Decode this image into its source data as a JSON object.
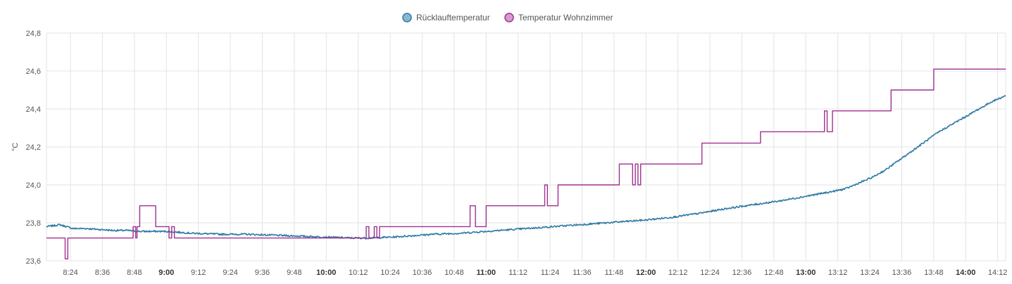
{
  "chart_data": {
    "type": "line",
    "ylabel": "°C",
    "ylim": [
      23.6,
      24.8
    ],
    "y_ticks": [
      "23,6",
      "23,8",
      "24,0",
      "24,2",
      "24,4",
      "24,6",
      "24,8"
    ],
    "y_tick_values": [
      23.6,
      23.8,
      24.0,
      24.2,
      24.4,
      24.6,
      24.8
    ],
    "xlim_minutes": [
      495,
      855
    ],
    "x_ticks": [
      {
        "label": "8:24",
        "m": 504,
        "bold": false
      },
      {
        "label": "8:36",
        "m": 516,
        "bold": false
      },
      {
        "label": "8:48",
        "m": 528,
        "bold": false
      },
      {
        "label": "9:00",
        "m": 540,
        "bold": true
      },
      {
        "label": "9:12",
        "m": 552,
        "bold": false
      },
      {
        "label": "9:24",
        "m": 564,
        "bold": false
      },
      {
        "label": "9:36",
        "m": 576,
        "bold": false
      },
      {
        "label": "9:48",
        "m": 588,
        "bold": false
      },
      {
        "label": "10:00",
        "m": 600,
        "bold": true
      },
      {
        "label": "10:12",
        "m": 612,
        "bold": false
      },
      {
        "label": "10:24",
        "m": 624,
        "bold": false
      },
      {
        "label": "10:36",
        "m": 636,
        "bold": false
      },
      {
        "label": "10:48",
        "m": 648,
        "bold": false
      },
      {
        "label": "11:00",
        "m": 660,
        "bold": true
      },
      {
        "label": "11:12",
        "m": 672,
        "bold": false
      },
      {
        "label": "11:24",
        "m": 684,
        "bold": false
      },
      {
        "label": "11:36",
        "m": 696,
        "bold": false
      },
      {
        "label": "11:48",
        "m": 708,
        "bold": false
      },
      {
        "label": "12:00",
        "m": 720,
        "bold": true
      },
      {
        "label": "12:12",
        "m": 732,
        "bold": false
      },
      {
        "label": "12:24",
        "m": 744,
        "bold": false
      },
      {
        "label": "12:36",
        "m": 756,
        "bold": false
      },
      {
        "label": "12:48",
        "m": 768,
        "bold": false
      },
      {
        "label": "13:00",
        "m": 780,
        "bold": true
      },
      {
        "label": "13:12",
        "m": 792,
        "bold": false
      },
      {
        "label": "13:24",
        "m": 804,
        "bold": false
      },
      {
        "label": "13:36",
        "m": 816,
        "bold": false
      },
      {
        "label": "13:48",
        "m": 828,
        "bold": false
      },
      {
        "label": "14:00",
        "m": 840,
        "bold": true
      },
      {
        "label": "14:12",
        "m": 852,
        "bold": false
      }
    ],
    "grid": true,
    "legend_position": "top-center",
    "series": [
      {
        "name": "Rücklauftemperatur",
        "color": "#2f7aa3",
        "fill": "#8fb6cf",
        "step": false,
        "points": [
          [
            495,
            23.78
          ],
          [
            500,
            23.79
          ],
          [
            505,
            23.77
          ],
          [
            510,
            23.77
          ],
          [
            515,
            23.765
          ],
          [
            520,
            23.76
          ],
          [
            525,
            23.76
          ],
          [
            530,
            23.755
          ],
          [
            535,
            23.755
          ],
          [
            540,
            23.755
          ],
          [
            545,
            23.75
          ],
          [
            550,
            23.745
          ],
          [
            560,
            23.74
          ],
          [
            570,
            23.74
          ],
          [
            580,
            23.735
          ],
          [
            590,
            23.73
          ],
          [
            600,
            23.725
          ],
          [
            610,
            23.72
          ],
          [
            615,
            23.72
          ],
          [
            625,
            23.725
          ],
          [
            630,
            23.73
          ],
          [
            640,
            23.74
          ],
          [
            650,
            23.745
          ],
          [
            660,
            23.755
          ],
          [
            670,
            23.765
          ],
          [
            680,
            23.775
          ],
          [
            690,
            23.785
          ],
          [
            700,
            23.795
          ],
          [
            710,
            23.805
          ],
          [
            720,
            23.815
          ],
          [
            730,
            23.83
          ],
          [
            740,
            23.85
          ],
          [
            750,
            23.875
          ],
          [
            760,
            23.895
          ],
          [
            770,
            23.915
          ],
          [
            780,
            23.94
          ],
          [
            790,
            23.965
          ],
          [
            795,
            23.98
          ],
          [
            800,
            24.01
          ],
          [
            805,
            24.04
          ],
          [
            810,
            24.08
          ],
          [
            815,
            24.13
          ],
          [
            820,
            24.18
          ],
          [
            825,
            24.23
          ],
          [
            830,
            24.28
          ],
          [
            835,
            24.32
          ],
          [
            840,
            24.36
          ],
          [
            845,
            24.4
          ],
          [
            850,
            24.44
          ],
          [
            855,
            24.47
          ]
        ]
      },
      {
        "name": "Temperatur Wohnzimmer",
        "color": "#a0308f",
        "fill": "#d79ad0",
        "step": true,
        "points": [
          [
            495,
            23.72
          ],
          [
            502,
            23.61
          ],
          [
            503,
            23.72
          ],
          [
            527.5,
            23.78
          ],
          [
            528.5,
            23.72
          ],
          [
            529,
            23.78
          ],
          [
            530,
            23.89
          ],
          [
            536,
            23.78
          ],
          [
            541,
            23.72
          ],
          [
            542,
            23.78
          ],
          [
            543,
            23.72
          ],
          [
            615,
            23.78
          ],
          [
            616,
            23.72
          ],
          [
            618,
            23.78
          ],
          [
            619,
            23.72
          ],
          [
            620,
            23.78
          ],
          [
            654,
            23.89
          ],
          [
            656,
            23.78
          ],
          [
            660,
            23.89
          ],
          [
            682,
            24.0
          ],
          [
            683,
            23.89
          ],
          [
            687,
            24.0
          ],
          [
            710,
            24.11
          ],
          [
            715,
            24.0
          ],
          [
            716,
            24.11
          ],
          [
            717,
            24.0
          ],
          [
            718,
            24.11
          ],
          [
            741,
            24.22
          ],
          [
            763,
            24.28
          ],
          [
            787,
            24.39
          ],
          [
            788,
            24.28
          ],
          [
            790,
            24.39
          ],
          [
            812,
            24.5
          ],
          [
            828,
            24.61
          ],
          [
            855,
            24.61
          ]
        ]
      }
    ]
  }
}
